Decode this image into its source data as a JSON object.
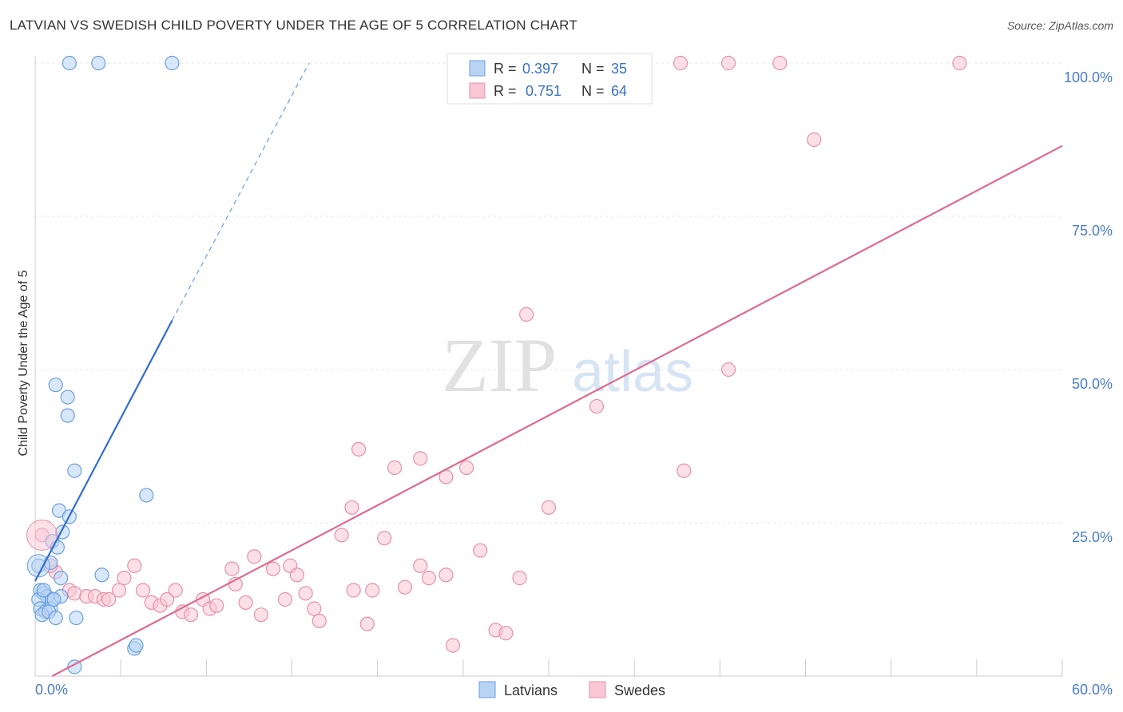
{
  "title": "LATVIAN VS SWEDISH CHILD POVERTY UNDER THE AGE OF 5 CORRELATION CHART",
  "source": "Source: ZipAtlas.com",
  "watermark": {
    "zip": "ZIP",
    "atlas": "atlas"
  },
  "legend": {
    "rows": [
      {
        "r_label": "R = ",
        "r_value": "0.397",
        "n_label": "N = ",
        "n_value": "35"
      },
      {
        "r_label": "R = ",
        "r_value": "0.751",
        "n_label": "N = ",
        "n_value": "64"
      }
    ]
  },
  "chart_data": {
    "type": "scatter",
    "title": "LATVIAN VS SWEDISH CHILD POVERTY UNDER THE AGE OF 5 CORRELATION CHART",
    "xlabel": "",
    "ylabel": "Child Poverty Under the Age of 5",
    "xlim": [
      0,
      60
    ],
    "ylim": [
      0,
      100
    ],
    "x_tick_labels": [
      {
        "value": 0,
        "label": "0.0%"
      },
      {
        "value": 60,
        "label": "60.0%"
      }
    ],
    "y_tick_labels": [
      {
        "value": 25,
        "label": "25.0%"
      },
      {
        "value": 50,
        "label": "50.0%"
      },
      {
        "value": 75,
        "label": "75.0%"
      },
      {
        "value": 100,
        "label": "100.0%"
      }
    ],
    "grid": true,
    "legend_position": "top-center",
    "series": [
      {
        "name": "Latvians",
        "color": "#6a9fe0",
        "fill": "#b8d3f4",
        "line_color": "#2f6fd0",
        "R": 0.397,
        "N": 35,
        "trend": {
          "x0": 0,
          "y0": 15.5,
          "x1": 8,
          "y1": 58,
          "dash_x_end": 16,
          "dash_y_end": 100
        },
        "points": [
          [
            2.0,
            100
          ],
          [
            3.7,
            100
          ],
          [
            8.0,
            100
          ],
          [
            1.2,
            47.5
          ],
          [
            1.9,
            45.5
          ],
          [
            1.9,
            42.5
          ],
          [
            2.3,
            33.5
          ],
          [
            6.5,
            29.5
          ],
          [
            1.4,
            27
          ],
          [
            2.0,
            26
          ],
          [
            1.6,
            23.5
          ],
          [
            1.0,
            22
          ],
          [
            1.3,
            21
          ],
          [
            0.2,
            18
          ],
          [
            0.9,
            18.5
          ],
          [
            1.5,
            16
          ],
          [
            3.9,
            16.5
          ],
          [
            0.3,
            14
          ],
          [
            0.5,
            13.5
          ],
          [
            0.7,
            13
          ],
          [
            1.0,
            12.5
          ],
          [
            1.5,
            13
          ],
          [
            0.2,
            12.5
          ],
          [
            0.3,
            11
          ],
          [
            0.6,
            10.5
          ],
          [
            0.9,
            11
          ],
          [
            0.4,
            10
          ],
          [
            0.8,
            10.5
          ],
          [
            1.2,
            9.5
          ],
          [
            2.4,
            9.5
          ],
          [
            5.8,
            4.5
          ],
          [
            5.9,
            5
          ],
          [
            2.3,
            1.5
          ],
          [
            0.5,
            14
          ],
          [
            1.1,
            12.5
          ]
        ]
      },
      {
        "name": "Swedes",
        "color": "#e890aa",
        "fill": "#f8c6d4",
        "line_color": "#e0698f",
        "R": 0.751,
        "N": 64,
        "trend": {
          "x0": 1,
          "y0": 0,
          "x1": 60,
          "y1": 86.5
        },
        "points": [
          [
            37.7,
            100
          ],
          [
            40.5,
            100
          ],
          [
            43.5,
            100
          ],
          [
            54.0,
            100
          ],
          [
            45.5,
            87.5
          ],
          [
            28.7,
            59
          ],
          [
            40.5,
            50
          ],
          [
            32.8,
            44
          ],
          [
            18.9,
            37
          ],
          [
            21.0,
            34
          ],
          [
            22.5,
            35.5
          ],
          [
            25.2,
            34
          ],
          [
            24.0,
            32.5
          ],
          [
            37.9,
            33.5
          ],
          [
            18.5,
            27.5
          ],
          [
            30.0,
            27.5
          ],
          [
            17.9,
            23
          ],
          [
            20.4,
            22.5
          ],
          [
            26.0,
            20.5
          ],
          [
            12.8,
            19.5
          ],
          [
            5.8,
            18
          ],
          [
            11.5,
            17.5
          ],
          [
            13.9,
            17.5
          ],
          [
            14.9,
            18
          ],
          [
            15.3,
            16.5
          ],
          [
            22.5,
            18
          ],
          [
            23.0,
            16
          ],
          [
            24.0,
            16.5
          ],
          [
            28.3,
            16
          ],
          [
            5.2,
            16
          ],
          [
            11.7,
            15
          ],
          [
            1.2,
            17
          ],
          [
            2.0,
            14
          ],
          [
            2.3,
            13.5
          ],
          [
            3.0,
            13
          ],
          [
            3.5,
            13
          ],
          [
            4.0,
            12.5
          ],
          [
            4.3,
            12.5
          ],
          [
            4.9,
            14
          ],
          [
            6.3,
            14
          ],
          [
            6.8,
            12
          ],
          [
            7.3,
            11.5
          ],
          [
            7.7,
            12.5
          ],
          [
            8.2,
            14
          ],
          [
            8.6,
            10.5
          ],
          [
            9.1,
            10
          ],
          [
            9.8,
            12.5
          ],
          [
            10.2,
            11
          ],
          [
            10.6,
            11.5
          ],
          [
            12.3,
            12
          ],
          [
            13.2,
            10
          ],
          [
            14.6,
            12.5
          ],
          [
            15.8,
            13.5
          ],
          [
            16.3,
            11
          ],
          [
            16.6,
            9
          ],
          [
            18.6,
            14
          ],
          [
            19.7,
            14
          ],
          [
            19.4,
            8.5
          ],
          [
            21.6,
            14.5
          ],
          [
            24.4,
            5
          ],
          [
            26.9,
            7.5
          ],
          [
            27.5,
            7
          ],
          [
            0.4,
            23
          ],
          [
            0.9,
            18
          ]
        ]
      }
    ]
  }
}
